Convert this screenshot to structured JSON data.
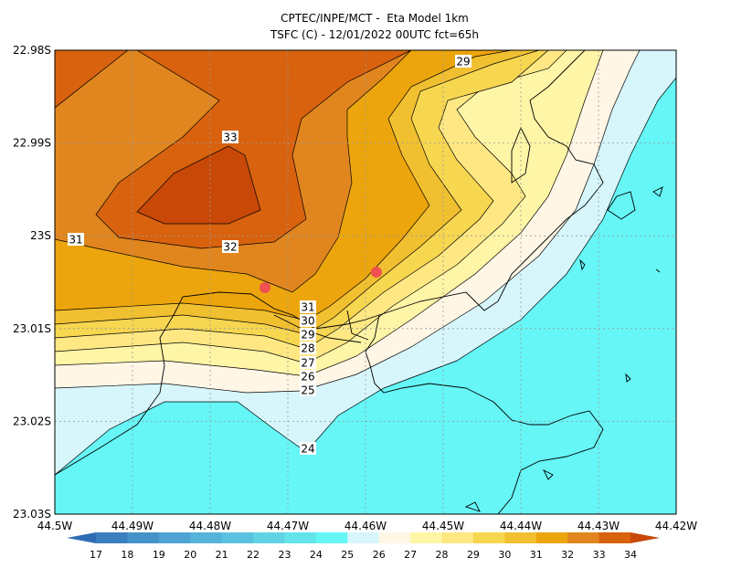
{
  "title": "CPTEC/INPE/MCT -  Eta Model 1km",
  "subtitle": "TSFC (C) - 12/01/2022 00UTC fct=65h",
  "lat_ticks": [
    "22.98S",
    "22.99S",
    "23S",
    "23.01S",
    "23.02S",
    "23.03S"
  ],
  "lon_ticks": [
    "44.5W",
    "44.49W",
    "44.48W",
    "44.47W",
    "44.46W",
    "44.45W",
    "44.44W",
    "44.43W",
    "44.42W"
  ],
  "contour_labels": [
    29,
    33,
    31,
    32,
    31,
    30,
    29,
    28,
    27,
    26,
    25,
    24
  ],
  "colorbar": {
    "labels": [
      17,
      18,
      19,
      20,
      21,
      22,
      23,
      24,
      25,
      26,
      27,
      28,
      29,
      30,
      31,
      32,
      33,
      34
    ],
    "colors": [
      "#2f6cb3",
      "#3a7fc0",
      "#4592c9",
      "#4ea3d2",
      "#55b3d9",
      "#5bc3df",
      "#60d3e4",
      "#63e3ea",
      "#66f6f6",
      "#d6f6fb",
      "#fff6e6",
      "#fff5a6",
      "#ffe883",
      "#f7d650",
      "#f1c030",
      "#eca50c",
      "#e1861e",
      "#d8620e",
      "#c84808"
    ]
  }
}
